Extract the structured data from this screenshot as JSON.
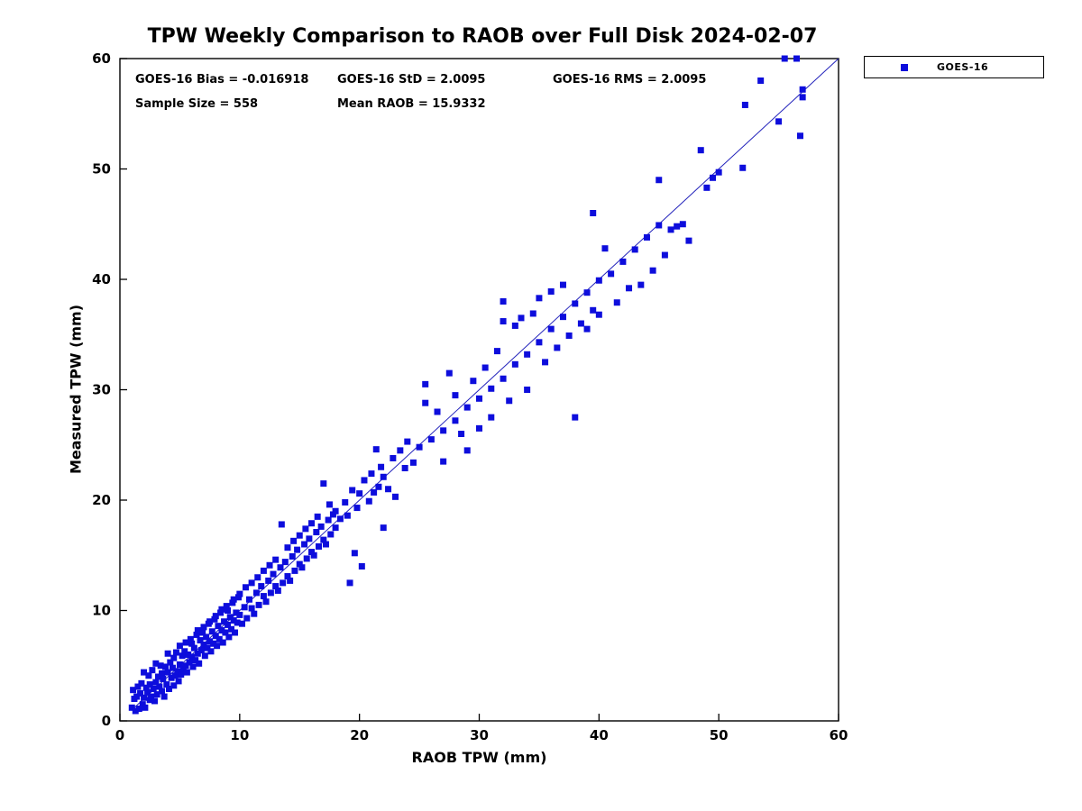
{
  "title": "TPW Weekly Comparison to RAOB over Full Disk 2024-02-07",
  "annotations": {
    "bias": "GOES-16 Bias = -0.016918",
    "std": "GOES-16 StD = 2.0095",
    "rms": "GOES-16 RMS = 2.0095",
    "sample_size": "Sample Size = 558",
    "mean_raob": "Mean RAOB = 15.9332"
  },
  "legend": {
    "label": "GOES-16",
    "marker_color": "#0d0ddc"
  },
  "chart_data": {
    "type": "scatter",
    "title": "TPW Weekly Comparison to RAOB over Full Disk 2024-02-07",
    "xlabel": "RAOB TPW (mm)",
    "ylabel": "Measured TPW (mm)",
    "xlim": [
      0,
      60
    ],
    "ylim": [
      0,
      60
    ],
    "xticks": [
      0,
      10,
      20,
      30,
      40,
      50,
      60
    ],
    "yticks": [
      0,
      10,
      20,
      30,
      40,
      50,
      60
    ],
    "grid": false,
    "legend_position": "top-right-outside",
    "marker_color": "#0d0ddc",
    "fit_line": {
      "x1": 1.0,
      "y1": 1.0,
      "x2": 60.0,
      "y2": 60.0,
      "color": "#2222bb"
    },
    "series": [
      {
        "name": "GOES-16",
        "points": [
          [
            1.0,
            1.2
          ],
          [
            1.1,
            2.8
          ],
          [
            1.2,
            2.0
          ],
          [
            1.3,
            0.9
          ],
          [
            1.4,
            2.2
          ],
          [
            1.5,
            3.1
          ],
          [
            1.6,
            1.1
          ],
          [
            1.7,
            2.5
          ],
          [
            1.8,
            3.4
          ],
          [
            1.9,
            1.5
          ],
          [
            2.0,
            2.1
          ],
          [
            2.0,
            4.4
          ],
          [
            2.1,
            1.2
          ],
          [
            2.2,
            3.0
          ],
          [
            2.3,
            2.6
          ],
          [
            2.4,
            4.1
          ],
          [
            2.5,
            1.9
          ],
          [
            2.5,
            3.3
          ],
          [
            2.6,
            2.2
          ],
          [
            2.7,
            4.6
          ],
          [
            2.8,
            2.9
          ],
          [
            2.9,
            1.8
          ],
          [
            3.0,
            3.5
          ],
          [
            3.0,
            5.2
          ],
          [
            3.1,
            2.4
          ],
          [
            3.2,
            4.0
          ],
          [
            3.3,
            3.1
          ],
          [
            3.4,
            5.0
          ],
          [
            3.5,
            2.7
          ],
          [
            3.5,
            4.3
          ],
          [
            3.6,
            3.8
          ],
          [
            3.7,
            2.2
          ],
          [
            3.8,
            4.9
          ],
          [
            3.9,
            3.3
          ],
          [
            4.0,
            4.4
          ],
          [
            4.0,
            6.1
          ],
          [
            4.1,
            2.9
          ],
          [
            4.2,
            5.3
          ],
          [
            4.3,
            3.9
          ],
          [
            4.4,
            4.8
          ],
          [
            4.5,
            3.2
          ],
          [
            4.5,
            5.7
          ],
          [
            4.6,
            4.1
          ],
          [
            4.7,
            6.2
          ],
          [
            4.8,
            4.5
          ],
          [
            4.9,
            3.6
          ],
          [
            5.0,
            5.1
          ],
          [
            5.0,
            6.8
          ],
          [
            5.1,
            4.2
          ],
          [
            5.2,
            5.9
          ],
          [
            5.3,
            4.7
          ],
          [
            5.4,
            6.3
          ],
          [
            5.5,
            5.0
          ],
          [
            5.5,
            7.1
          ],
          [
            5.6,
            4.4
          ],
          [
            5.7,
            6.0
          ],
          [
            5.8,
            5.3
          ],
          [
            5.9,
            7.4
          ],
          [
            6.0,
            5.8
          ],
          [
            6.0,
            7.0
          ],
          [
            6.1,
            4.9
          ],
          [
            6.2,
            6.6
          ],
          [
            6.3,
            5.5
          ],
          [
            6.4,
            7.8
          ],
          [
            6.5,
            6.1
          ],
          [
            6.5,
            8.2
          ],
          [
            6.6,
            5.2
          ],
          [
            6.7,
            7.3
          ],
          [
            6.8,
            6.4
          ],
          [
            6.9,
            8.0
          ],
          [
            7.0,
            6.9
          ],
          [
            7.0,
            8.5
          ],
          [
            7.1,
            5.9
          ],
          [
            7.2,
            7.6
          ],
          [
            7.3,
            6.6
          ],
          [
            7.4,
            8.8
          ],
          [
            7.5,
            7.2
          ],
          [
            7.5,
            9.0
          ],
          [
            7.6,
            6.3
          ],
          [
            7.7,
            8.1
          ],
          [
            7.8,
            7.0
          ],
          [
            7.9,
            9.2
          ],
          [
            8.0,
            7.7
          ],
          [
            8.0,
            9.5
          ],
          [
            8.1,
            6.8
          ],
          [
            8.2,
            8.6
          ],
          [
            8.3,
            7.4
          ],
          [
            8.4,
            9.8
          ],
          [
            8.5,
            8.2
          ],
          [
            8.5,
            10.1
          ],
          [
            8.6,
            7.1
          ],
          [
            8.7,
            9.0
          ],
          [
            8.8,
            8.0
          ],
          [
            8.9,
            10.4
          ],
          [
            9.0,
            8.7
          ],
          [
            9.0,
            10.0
          ],
          [
            9.1,
            7.6
          ],
          [
            9.2,
            9.4
          ],
          [
            9.3,
            8.3
          ],
          [
            9.4,
            10.7
          ],
          [
            9.5,
            9.1
          ],
          [
            9.5,
            11.0
          ],
          [
            9.6,
            8.0
          ],
          [
            9.7,
            9.8
          ],
          [
            9.8,
            8.9
          ],
          [
            9.9,
            11.2
          ],
          [
            10.0,
            9.6
          ],
          [
            10.0,
            11.5
          ],
          [
            10.2,
            8.8
          ],
          [
            10.4,
            10.3
          ],
          [
            10.5,
            12.1
          ],
          [
            10.6,
            9.3
          ],
          [
            10.8,
            11.0
          ],
          [
            11.0,
            10.2
          ],
          [
            11.0,
            12.5
          ],
          [
            11.2,
            9.7
          ],
          [
            11.4,
            11.6
          ],
          [
            11.5,
            13.0
          ],
          [
            11.6,
            10.5
          ],
          [
            11.8,
            12.2
          ],
          [
            12.0,
            11.3
          ],
          [
            12.0,
            13.6
          ],
          [
            12.2,
            10.8
          ],
          [
            12.4,
            12.7
          ],
          [
            12.5,
            14.1
          ],
          [
            12.6,
            11.6
          ],
          [
            12.8,
            13.3
          ],
          [
            13.0,
            12.2
          ],
          [
            13.0,
            14.6
          ],
          [
            13.2,
            11.8
          ],
          [
            13.4,
            13.9
          ],
          [
            13.5,
            17.8
          ],
          [
            13.6,
            12.5
          ],
          [
            13.8,
            14.4
          ],
          [
            14.0,
            13.1
          ],
          [
            14.0,
            15.7
          ],
          [
            14.2,
            12.7
          ],
          [
            14.4,
            14.9
          ],
          [
            14.5,
            16.3
          ],
          [
            14.6,
            13.6
          ],
          [
            14.8,
            15.5
          ],
          [
            15.0,
            14.2
          ],
          [
            15.0,
            16.8
          ],
          [
            15.2,
            13.9
          ],
          [
            15.4,
            16.0
          ],
          [
            15.5,
            17.4
          ],
          [
            15.6,
            14.7
          ],
          [
            15.8,
            16.5
          ],
          [
            16.0,
            15.3
          ],
          [
            16.0,
            17.9
          ],
          [
            16.2,
            15.0
          ],
          [
            16.4,
            17.1
          ],
          [
            16.5,
            18.5
          ],
          [
            16.6,
            15.8
          ],
          [
            16.8,
            17.6
          ],
          [
            17.0,
            16.4
          ],
          [
            17.0,
            21.5
          ],
          [
            17.2,
            16.0
          ],
          [
            17.4,
            18.2
          ],
          [
            17.5,
            19.6
          ],
          [
            17.6,
            16.9
          ],
          [
            17.8,
            18.7
          ],
          [
            18.0,
            17.5
          ],
          [
            18.0,
            19.0
          ],
          [
            18.4,
            18.3
          ],
          [
            18.8,
            19.8
          ],
          [
            19.0,
            18.6
          ],
          [
            19.2,
            12.5
          ],
          [
            19.4,
            20.9
          ],
          [
            19.6,
            15.2
          ],
          [
            19.8,
            19.3
          ],
          [
            20.0,
            20.6
          ],
          [
            20.2,
            14.0
          ],
          [
            20.4,
            21.8
          ],
          [
            20.8,
            19.9
          ],
          [
            21.0,
            22.4
          ],
          [
            21.2,
            20.7
          ],
          [
            21.4,
            24.6
          ],
          [
            21.6,
            21.2
          ],
          [
            21.8,
            23.0
          ],
          [
            22.0,
            22.1
          ],
          [
            22.0,
            17.5
          ],
          [
            22.4,
            21.0
          ],
          [
            22.8,
            23.8
          ],
          [
            23.0,
            20.3
          ],
          [
            23.4,
            24.5
          ],
          [
            23.8,
            22.9
          ],
          [
            24.0,
            25.3
          ],
          [
            24.5,
            23.4
          ],
          [
            25.0,
            24.8
          ],
          [
            25.5,
            28.8
          ],
          [
            25.5,
            30.5
          ],
          [
            26.0,
            25.5
          ],
          [
            26.5,
            28.0
          ],
          [
            27.0,
            26.3
          ],
          [
            27.0,
            23.5
          ],
          [
            27.5,
            31.5
          ],
          [
            28.0,
            27.2
          ],
          [
            28.0,
            29.5
          ],
          [
            28.5,
            26.0
          ],
          [
            29.0,
            28.4
          ],
          [
            29.0,
            24.5
          ],
          [
            29.5,
            30.8
          ],
          [
            30.0,
            29.2
          ],
          [
            30.0,
            26.5
          ],
          [
            30.5,
            32.0
          ],
          [
            31.0,
            30.1
          ],
          [
            31.0,
            27.5
          ],
          [
            31.5,
            33.5
          ],
          [
            32.0,
            31.0
          ],
          [
            32.0,
            38.0
          ],
          [
            32.0,
            36.2
          ],
          [
            32.5,
            29.0
          ],
          [
            33.0,
            32.3
          ],
          [
            33.0,
            35.8
          ],
          [
            33.5,
            36.5
          ],
          [
            34.0,
            33.2
          ],
          [
            34.0,
            30.0
          ],
          [
            34.5,
            36.9
          ],
          [
            35.0,
            34.3
          ],
          [
            35.0,
            38.3
          ],
          [
            35.5,
            32.5
          ],
          [
            36.0,
            35.5
          ],
          [
            36.0,
            38.9
          ],
          [
            36.5,
            33.8
          ],
          [
            37.0,
            36.6
          ],
          [
            37.0,
            39.5
          ],
          [
            37.5,
            34.9
          ],
          [
            38.0,
            37.8
          ],
          [
            38.0,
            27.5
          ],
          [
            38.5,
            36.0
          ],
          [
            39.0,
            38.8
          ],
          [
            39.0,
            35.5
          ],
          [
            39.5,
            46.0
          ],
          [
            39.5,
            37.2
          ],
          [
            40.0,
            39.9
          ],
          [
            40.0,
            36.8
          ],
          [
            40.5,
            42.8
          ],
          [
            41.0,
            40.5
          ],
          [
            41.5,
            37.9
          ],
          [
            42.0,
            41.6
          ],
          [
            42.5,
            39.2
          ],
          [
            43.0,
            42.7
          ],
          [
            43.5,
            39.5
          ],
          [
            44.0,
            43.8
          ],
          [
            44.5,
            40.8
          ],
          [
            45.0,
            44.9
          ],
          [
            45.0,
            49.0
          ],
          [
            45.5,
            42.2
          ],
          [
            46.0,
            44.5
          ],
          [
            46.5,
            44.8
          ],
          [
            47.0,
            45.0
          ],
          [
            47.5,
            43.5
          ],
          [
            48.5,
            51.7
          ],
          [
            49.0,
            48.3
          ],
          [
            49.5,
            49.2
          ],
          [
            50.0,
            49.7
          ],
          [
            52.0,
            50.1
          ],
          [
            52.2,
            55.8
          ],
          [
            53.5,
            58.0
          ],
          [
            55.0,
            54.3
          ],
          [
            55.5,
            60.0
          ],
          [
            56.5,
            60.0
          ],
          [
            56.8,
            53.0
          ],
          [
            57.0,
            56.5
          ],
          [
            57.0,
            57.2
          ]
        ]
      }
    ]
  }
}
